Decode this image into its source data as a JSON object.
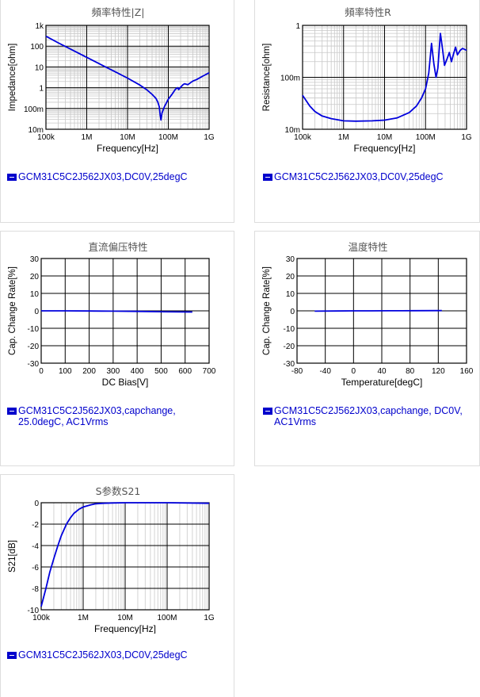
{
  "charts": [
    {
      "id": "c1",
      "title": "頻率特性|Z|",
      "chart_data": {
        "type": "line",
        "title": "頻率特性|Z|",
        "xlabel": "Frequency[Hz]",
        "ylabel": "Impedance[ohm]",
        "xscale": "log",
        "yscale": "log",
        "xlim": [
          100000,
          1000000000
        ],
        "ylim": [
          0.01,
          1000
        ],
        "xticks": [
          "100k",
          "1M",
          "10M",
          "100M",
          "1G"
        ],
        "yticks": [
          "10m",
          "100m",
          "1",
          "10",
          "100",
          "1k"
        ],
        "grid": true,
        "series": [
          {
            "name": "GCM31C5C2J562JX03,DC0V,25degC",
            "x": [
              100000,
              200000,
              500000,
              1000000,
              2000000,
              5000000,
              10000000,
              20000000,
              30000000,
              40000000,
              50000000,
              55000000,
              60000000,
              63000000,
              66000000,
              70000000,
              80000000,
              100000000,
              120000000,
              150000000,
              170000000,
              180000000,
              200000000,
              230000000,
              250000000,
              300000000,
              400000000,
              500000000,
              700000000,
              1000000000
            ],
            "y": [
              300,
              145,
              58,
              29,
              14.5,
              5.8,
              2.9,
              1.35,
              0.78,
              0.48,
              0.3,
              0.21,
              0.12,
              0.05,
              0.028,
              0.06,
              0.12,
              0.28,
              0.45,
              0.85,
              1.0,
              0.82,
              1.05,
              1.4,
              1.55,
              1.4,
              2.1,
              2.5,
              3.6,
              5.2
            ]
          }
        ]
      },
      "legend": "GCM31C5C2J562JX03,DC0V,25degC"
    },
    {
      "id": "c2",
      "title": "頻率特性R",
      "chart_data": {
        "type": "line",
        "title": "頻率特性R",
        "xlabel": "Frequency[Hz]",
        "ylabel": "Resistance[ohm]",
        "xscale": "log",
        "yscale": "log",
        "xlim": [
          100000,
          1000000000
        ],
        "ylim": [
          0.01,
          1
        ],
        "xticks": [
          "100k",
          "1M",
          "10M",
          "100M",
          "1G"
        ],
        "yticks": [
          "10m",
          "100m",
          "1"
        ],
        "grid": true,
        "series": [
          {
            "name": "GCM31C5C2J562JX03,DC0V,25degC",
            "x": [
              100000,
              150000,
              200000,
              300000,
              500000,
              1000000,
              2000000,
              5000000,
              10000000,
              20000000,
              40000000,
              60000000,
              80000000,
              100000000,
              120000000,
              140000000,
              160000000,
              180000000,
              200000000,
              230000000,
              260000000,
              290000000,
              330000000,
              380000000,
              430000000,
              480000000,
              540000000,
              600000000,
              700000000,
              800000000,
              1000000000
            ],
            "y": [
              0.045,
              0.028,
              0.022,
              0.018,
              0.016,
              0.0145,
              0.0143,
              0.0145,
              0.015,
              0.0165,
              0.021,
              0.028,
              0.04,
              0.06,
              0.12,
              0.45,
              0.18,
              0.1,
              0.15,
              0.7,
              0.35,
              0.17,
              0.22,
              0.3,
              0.2,
              0.28,
              0.38,
              0.27,
              0.33,
              0.36,
              0.33
            ]
          }
        ]
      },
      "legend": "GCM31C5C2J562JX03,DC0V,25degC"
    },
    {
      "id": "c3",
      "title": "直流偏压特性",
      "chart_data": {
        "type": "line",
        "title": "直流偏压特性",
        "xlabel": "DC Bias[V]",
        "ylabel": "Cap. Change Rate[%]",
        "xscale": "linear",
        "yscale": "linear",
        "xlim": [
          0,
          700
        ],
        "ylim": [
          -30,
          30
        ],
        "xticks": [
          "0",
          "100",
          "200",
          "300",
          "400",
          "500",
          "600",
          "700"
        ],
        "yticks": [
          "-30",
          "-20",
          "-10",
          "0",
          "10",
          "20",
          "30"
        ],
        "grid": true,
        "series": [
          {
            "name": "GCM31C5C2J562JX03,capchange, 25.0degC, AC1Vrms",
            "x": [
              0,
              100,
              200,
              300,
              400,
              500,
              630
            ],
            "y": [
              0,
              0,
              -0.1,
              -0.2,
              -0.3,
              -0.5,
              -0.7
            ]
          }
        ]
      },
      "legend": "GCM31C5C2J562JX03,capchange, 25.0degC, AC1Vrms"
    },
    {
      "id": "c4",
      "title": "温度特性",
      "chart_data": {
        "type": "line",
        "title": "温度特性",
        "xlabel": "Temperature[degC]",
        "ylabel": "Cap. Change Rate[%]",
        "xscale": "linear",
        "yscale": "linear",
        "xlim": [
          -80,
          160
        ],
        "ylim": [
          -30,
          30
        ],
        "xticks": [
          "-80",
          "-40",
          "0",
          "40",
          "80",
          "120",
          "160"
        ],
        "yticks": [
          "-30",
          "-20",
          "-10",
          "0",
          "10",
          "20",
          "30"
        ],
        "grid": true,
        "series": [
          {
            "name": "GCM31C5C2J562JX03,capchange, DC0V, AC1Vrms",
            "x": [
              -55,
              -25,
              0,
              25,
              50,
              85,
              125
            ],
            "y": [
              -0.2,
              -0.1,
              0,
              0,
              0.05,
              0.1,
              0.15
            ]
          }
        ]
      },
      "legend": "GCM31C5C2J562JX03,capchange, DC0V, AC1Vrms"
    },
    {
      "id": "c5",
      "title": "S参数S21",
      "chart_data": {
        "type": "line",
        "title": "S参数S21",
        "xlabel": "Frequency[Hz]",
        "ylabel": "S21[dB]",
        "xscale": "log",
        "yscale": "linear",
        "xlim": [
          100000,
          1000000000
        ],
        "ylim": [
          -10,
          0
        ],
        "xticks": [
          "100k",
          "1M",
          "10M",
          "100M",
          "1G"
        ],
        "yticks": [
          "-10",
          "-8",
          "-6",
          "-4",
          "-2",
          "0"
        ],
        "grid": true,
        "series": [
          {
            "name": "GCM31C5C2J562JX03,DC0V,25degC",
            "x": [
              100000,
              130000,
              160000,
              200000,
              250000,
              300000,
              400000,
              500000,
              600000,
              800000,
              1000000,
              1500000,
              2000000,
              3000000,
              5000000,
              10000000,
              100000000,
              1000000000
            ],
            "y": [
              -9.7,
              -8.0,
              -6.5,
              -5.2,
              -4.0,
              -3.1,
              -2.0,
              -1.4,
              -1.0,
              -0.6,
              -0.4,
              -0.2,
              -0.1,
              -0.05,
              -0.02,
              0,
              0,
              -0.05
            ]
          }
        ]
      },
      "legend": "GCM31C5C2J562JX03,DC0V,25degC"
    }
  ]
}
